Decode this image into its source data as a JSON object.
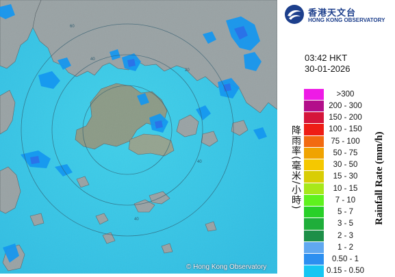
{
  "app": {
    "title_zh": "香港天文台",
    "title_en": "HONG KONG OBSERVATORY"
  },
  "map": {
    "copyright": "© Hong Kong Observatory",
    "range_rings": [
      "60",
      "40",
      "20"
    ],
    "colors": {
      "sea": "#36c6e6",
      "land": "#97a0a3",
      "rain_light": "#0fa7f0",
      "rain_mid": "#1e88f2"
    }
  },
  "timestamp": {
    "time": "03:42 HKT",
    "date": "30-01-2026"
  },
  "legend": {
    "title_en": "Rainfall Rate (mm/h)",
    "title_zh": "降雨率(毫米/小時)",
    "items": [
      {
        "label": ">300",
        "color": "#ee1be6"
      },
      {
        "label": "200 - 300",
        "color": "#b30f8a"
      },
      {
        "label": "150 - 200",
        "color": "#d5153b"
      },
      {
        "label": "100 - 150",
        "color": "#ee1d15"
      },
      {
        "label": "75 - 100",
        "color": "#f26a10"
      },
      {
        "label": "50 - 75",
        "color": "#f0a300"
      },
      {
        "label": "30 - 50",
        "color": "#f5c800"
      },
      {
        "label": "15 - 30",
        "color": "#d9cd05"
      },
      {
        "label": "10 - 15",
        "color": "#a7e81a"
      },
      {
        "label": "7 - 10",
        "color": "#5ff21e"
      },
      {
        "label": "5 - 7",
        "color": "#28d028"
      },
      {
        "label": "3 - 5",
        "color": "#1fae3a"
      },
      {
        "label": "2 - 3",
        "color": "#1d8f48"
      },
      {
        "label": "1 - 2",
        "color": "#60a8f0"
      },
      {
        "label": "0.50 - 1",
        "color": "#2c8ff0"
      },
      {
        "label": "0.15 - 0.50",
        "color": "#16c6f2"
      }
    ]
  }
}
